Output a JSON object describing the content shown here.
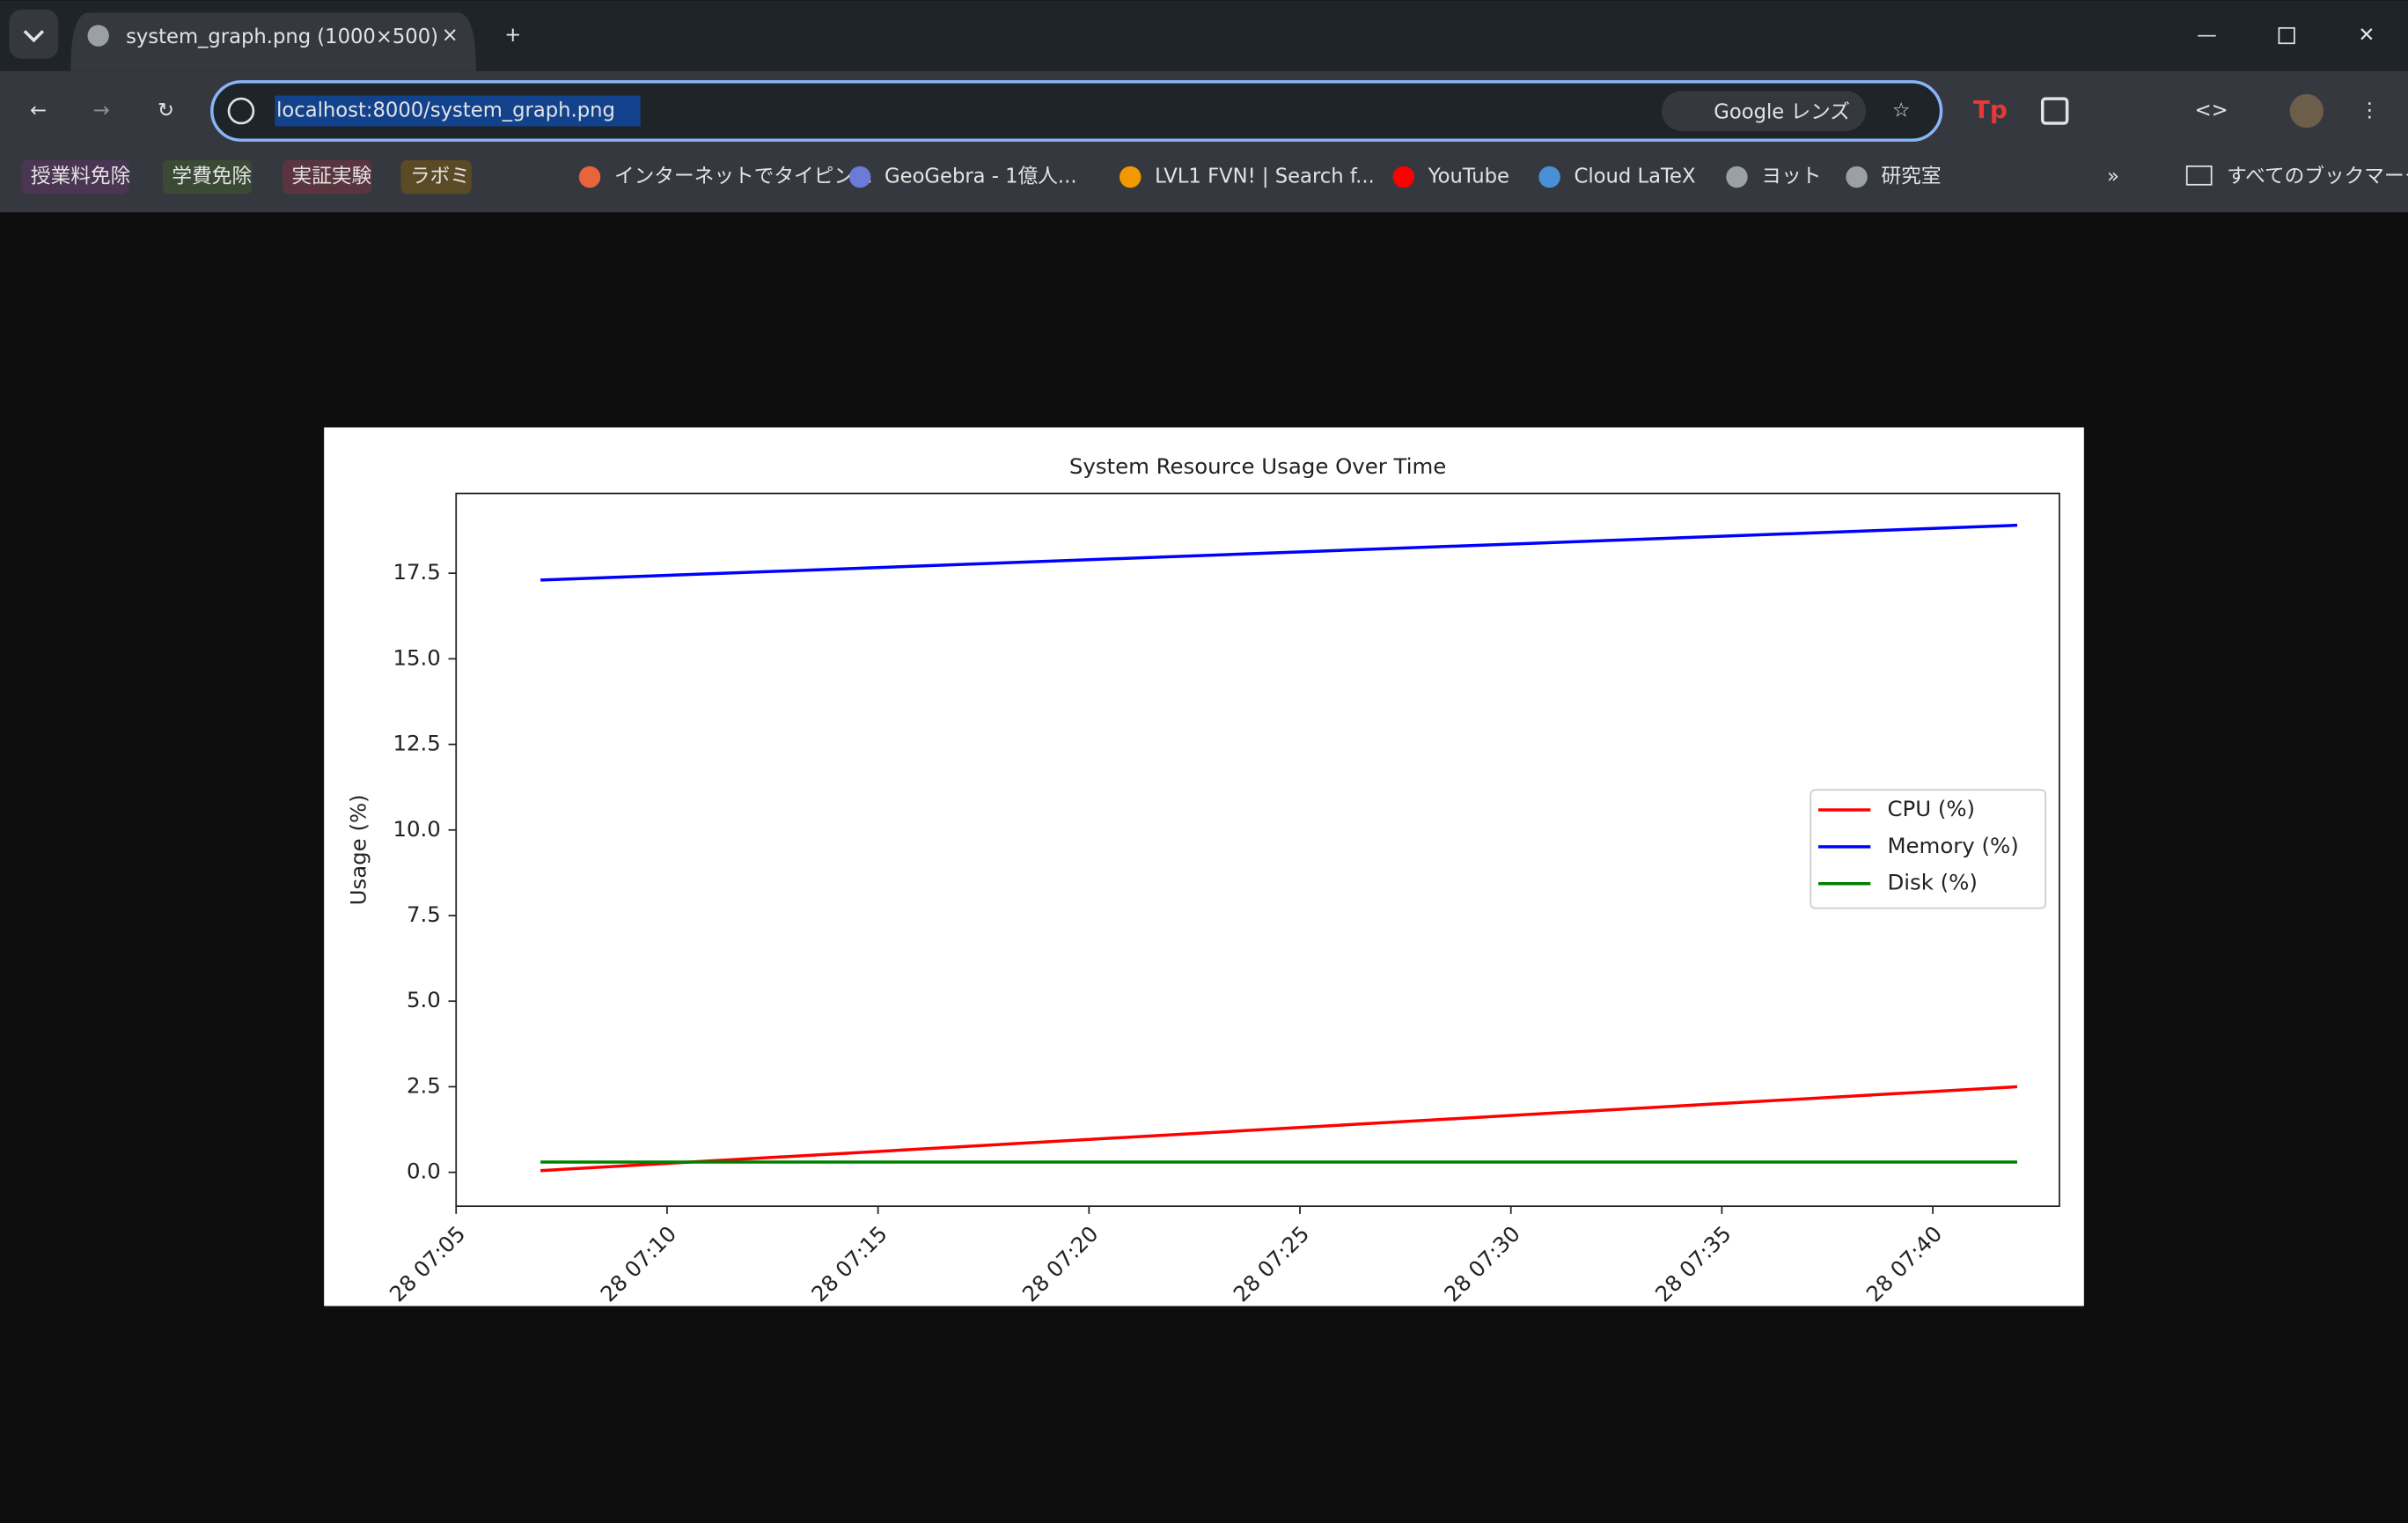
{
  "browser": {
    "tab_title": "system_graph.png (1000×500)",
    "url": "localhost:8000/system_graph.png",
    "lens": "Google レンズ",
    "bookmarks": [
      "授業料免除",
      "学費免除",
      "実証実験",
      "ラボミ",
      "インターネットでタイピン...",
      "GeoGebra - 1億人...",
      "LVL1 FVN! | Search f...",
      "YouTube",
      "Cloud LaTeX",
      "ヨット",
      "研究室"
    ],
    "all_bookmarks": "すべてのブックマーク"
  },
  "chart_data": {
    "type": "line",
    "title": "System Resource Usage Over Time",
    "y_label": "Usage (%)",
    "x": [
      "28 07:07",
      "28 07:42"
    ],
    "series": [
      {
        "name": "CPU (%)",
        "color": "#ff0000",
        "values": [
          0.05,
          2.5
        ]
      },
      {
        "name": "Memory (%)",
        "color": "#0000ff",
        "values": [
          17.3,
          18.9
        ]
      },
      {
        "name": "Disk (%)",
        "color": "#008000",
        "values": [
          0.3,
          0.3
        ]
      }
    ],
    "xlim": [
      "28 07:05",
      "28 07:43"
    ],
    "xticks": [
      "28 07:05",
      "28 07:10",
      "28 07:15",
      "28 07:20",
      "28 07:25",
      "28 07:30",
      "28 07:35",
      "28 07:40"
    ],
    "ylim": [
      -0.99,
      19.83
    ],
    "yticks": [
      {
        "value": 0,
        "label": "0.0"
      },
      {
        "value": 2.5,
        "label": "2.5"
      },
      {
        "value": 5,
        "label": "5.0"
      },
      {
        "value": 7.5,
        "label": "7.5"
      },
      {
        "value": 10,
        "label": "10.0"
      },
      {
        "value": 12.5,
        "label": "12.5"
      },
      {
        "value": 15,
        "label": "15.0"
      },
      {
        "value": 17.5,
        "label": "17.5"
      }
    ],
    "grid": false,
    "legend": "center right"
  }
}
